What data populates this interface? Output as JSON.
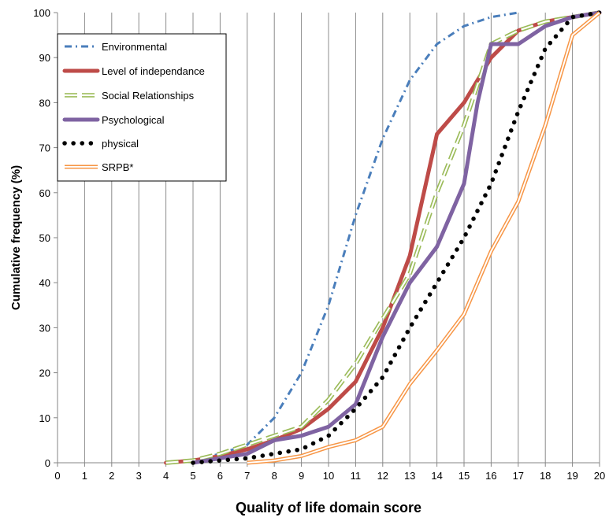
{
  "chart_data": {
    "type": "line",
    "xlabel": "Quality of life  domain score",
    "ylabel": "Cumulative frequency (%)",
    "xlim": [
      0,
      20
    ],
    "ylim": [
      0,
      100
    ],
    "xticks": [
      0,
      1,
      2,
      3,
      4,
      5,
      6,
      7,
      8,
      9,
      10,
      11,
      12,
      13,
      14,
      15,
      16,
      17,
      18,
      19,
      20
    ],
    "yticks": [
      0,
      10,
      20,
      30,
      40,
      50,
      60,
      70,
      80,
      90,
      100
    ],
    "grid": "vertical",
    "legend_position": "top-left",
    "series": [
      {
        "name": "Environmental",
        "color": "#4a7ebb",
        "style": "dash-dot",
        "x": [
          4,
          5,
          6,
          7,
          8,
          9,
          10,
          11,
          12,
          13,
          14,
          15,
          16,
          17
        ],
        "y": [
          0,
          0.5,
          2,
          4,
          10,
          20,
          35,
          55,
          72,
          85,
          93,
          97,
          99,
          100
        ]
      },
      {
        "name": "Level of independance",
        "color": "#be4b48",
        "style": "solid-thick",
        "x": [
          4,
          5,
          6,
          7,
          8,
          9,
          10,
          11,
          12,
          13,
          14,
          15,
          16,
          17,
          18,
          19,
          20
        ],
        "y": [
          0,
          0.5,
          1.5,
          3,
          5,
          7.5,
          12,
          18,
          30,
          46,
          73,
          80,
          90,
          96,
          98,
          99,
          100
        ]
      },
      {
        "name": "Social Relationships",
        "color": "#9bbb59",
        "style": "double-dash",
        "x": [
          4,
          5,
          6,
          7,
          8,
          9,
          10,
          11,
          12,
          13,
          14,
          15,
          16,
          17,
          18,
          19,
          20
        ],
        "y": [
          0,
          0.5,
          2,
          4,
          6,
          8,
          14,
          22,
          32,
          42,
          60,
          75,
          93,
          96,
          98,
          99,
          100
        ]
      },
      {
        "name": "Psychological",
        "color": "#7f63a2",
        "style": "solid-thick",
        "x": [
          5,
          6,
          7,
          8,
          9,
          10,
          11,
          12,
          13,
          14,
          15,
          15.5,
          16,
          17,
          18,
          19,
          20
        ],
        "y": [
          0,
          1,
          2,
          5,
          6,
          8,
          13,
          28,
          40,
          48,
          62,
          80,
          93,
          93,
          97,
          99,
          100
        ]
      },
      {
        "name": "physical",
        "color": "#000000",
        "style": "dotted",
        "x": [
          5,
          6,
          7,
          8,
          9,
          10,
          11,
          12,
          13,
          14,
          15,
          16,
          17,
          18,
          19,
          20
        ],
        "y": [
          0,
          0.5,
          1,
          2,
          3,
          6,
          12,
          19,
          30,
          40,
          50,
          62,
          78,
          92,
          99,
          100
        ]
      },
      {
        "name": "SRPB*",
        "color": "#f79646",
        "style": "double-line",
        "x": [
          7,
          8,
          9,
          10,
          11,
          12,
          13,
          14,
          15,
          16,
          17,
          18,
          19,
          20
        ],
        "y": [
          0,
          0.5,
          1.5,
          3.5,
          5,
          8,
          17.5,
          25,
          33,
          47,
          58,
          75,
          95,
          100
        ]
      }
    ]
  }
}
